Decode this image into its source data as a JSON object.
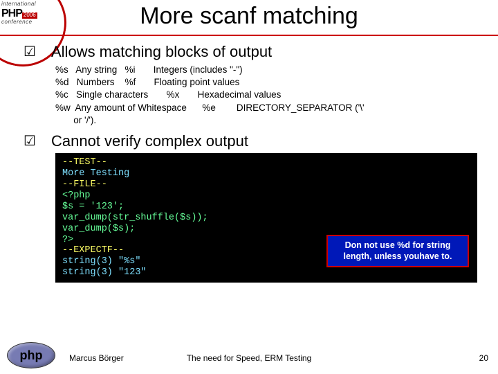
{
  "slide": {
    "title": "More scanf matching",
    "bullet1": "Allows matching blocks of output",
    "bullet2": "Cannot verify complex output",
    "format_rows": [
      "%s   Any string   %i       Integers (includes \"-\")",
      "%d   Numbers    %f       Floating point values",
      "%c   Single characters       %x       Hexadecimal values",
      "%w  Any amount of Whitespace      %e        DIRECTORY_SEPARATOR ('\\'",
      "       or '/')."
    ],
    "code": {
      "l1": "--TEST--",
      "l2": "More Testing",
      "l3": "--FILE--",
      "l4": "<?php",
      "l5": "$s = '123';",
      "l6": "var_dump(str_shuffle($s));",
      "l7": "var_dump($s);",
      "l8": "?>",
      "l9": "--EXPECTF--",
      "l10": "string(3) \"%s\"",
      "l11": "string(3) \"123\""
    },
    "callout": "Don not use %d for string length, unless youhave to.",
    "logo_top": {
      "intl": "international",
      "php": "PHP",
      "year": "2006",
      "conf": "conference"
    },
    "footer": {
      "author": "Marcus Börger",
      "center": "The need for Speed, ERM Testing",
      "page": "20",
      "phplogo": "php"
    }
  }
}
